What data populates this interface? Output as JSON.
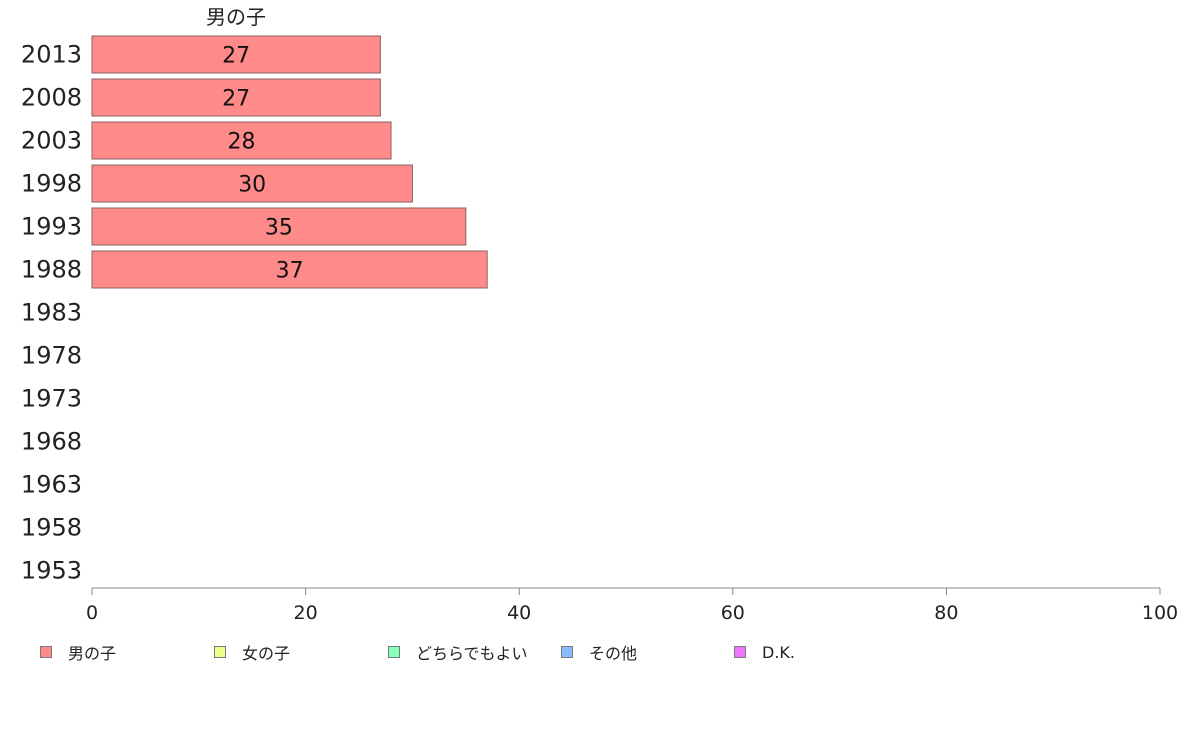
{
  "chart_data": {
    "type": "bar",
    "orientation": "horizontal",
    "stacked": true,
    "title": "男の子",
    "categories": [
      "2013",
      "2008",
      "2003",
      "1998",
      "1993",
      "1988",
      "1983",
      "1978",
      "1973",
      "1968",
      "1963",
      "1958",
      "1953"
    ],
    "series": [
      {
        "name": "男の子",
        "color": "#ff8a8a",
        "values": [
          27,
          27,
          28,
          30,
          35,
          37,
          null,
          null,
          null,
          null,
          null,
          null,
          null
        ]
      }
    ],
    "data_labels": [
      "27",
      "27",
      "28",
      "30",
      "35",
      "37"
    ],
    "xlim": [
      0,
      100
    ],
    "xticks": [
      "0",
      "20",
      "40",
      "60",
      "80",
      "100"
    ],
    "grid": false,
    "legend": {
      "position": "bottom",
      "items": [
        {
          "label": "男の子",
          "color": "#ff8a8a"
        },
        {
          "label": "女の子",
          "color": "#eeff88"
        },
        {
          "label": "どちらでもよい",
          "color": "#88ffbb"
        },
        {
          "label": "その他",
          "color": "#88bbff"
        },
        {
          "label": "D.K.",
          "color": "#ee77ff"
        }
      ]
    }
  }
}
